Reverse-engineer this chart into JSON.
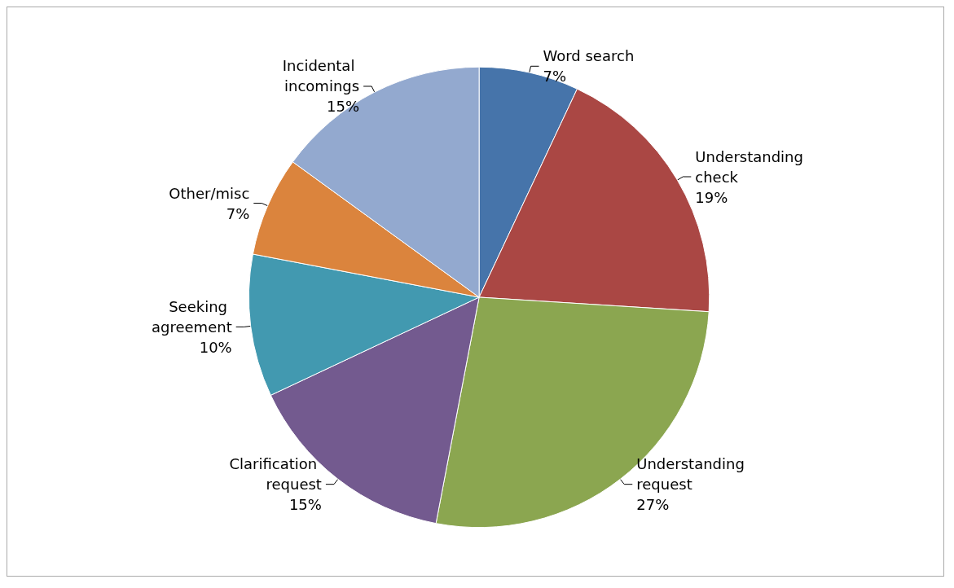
{
  "chart_data": {
    "type": "pie",
    "categories": [
      "Word search",
      "Understanding check",
      "Understanding request",
      "Clarification request",
      "Seeking agreement",
      "Other/misc",
      "Incidental incomings"
    ],
    "values": [
      7,
      19,
      27,
      15,
      10,
      7,
      15
    ],
    "colors": [
      "#4674aa",
      "#aa4744",
      "#8ba650",
      "#735a8f",
      "#4299b0",
      "#db843d",
      "#93a9cf"
    ],
    "value_labels": [
      "7%",
      "19%",
      "27%",
      "15%",
      "10%",
      "7%",
      "15%"
    ],
    "legend": false
  }
}
